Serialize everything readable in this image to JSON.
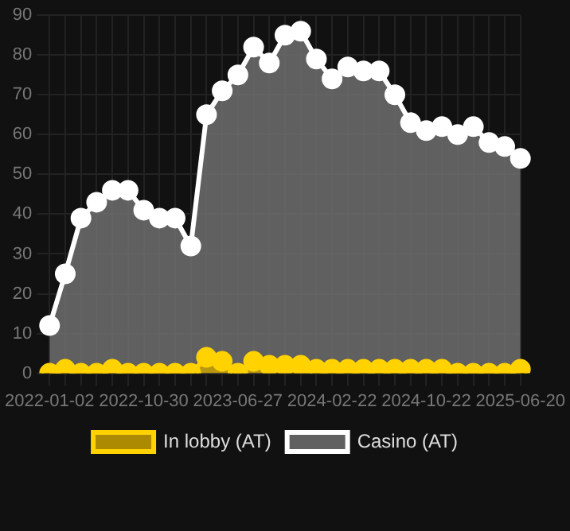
{
  "chart_data": {
    "type": "area",
    "categories": [
      "2022-01-02",
      null,
      null,
      null,
      null,
      null,
      "2022-10-30",
      null,
      null,
      null,
      null,
      null,
      "2023-06-27",
      null,
      null,
      null,
      null,
      null,
      "2024-02-22",
      null,
      null,
      null,
      null,
      null,
      "2024-10-22",
      null,
      null,
      null,
      null,
      null,
      "2025-06-20"
    ],
    "series": [
      {
        "name": "In lobby (AT)",
        "color": "#ffd200",
        "values": [
          0,
          1,
          0,
          0,
          1,
          0,
          0,
          0,
          0,
          0,
          4,
          3,
          0,
          3,
          2,
          2,
          2,
          1,
          1,
          1,
          1,
          1,
          1,
          1,
          1,
          1,
          0,
          0,
          0,
          0,
          1
        ]
      },
      {
        "name": "Casino (AT)",
        "color": "#ffffff",
        "values": [
          12,
          25,
          39,
          43,
          46,
          46,
          41,
          39,
          39,
          32,
          65,
          71,
          75,
          82,
          78,
          85,
          86,
          79,
          74,
          77,
          76,
          76,
          70,
          63,
          61,
          62,
          60,
          62,
          58,
          57,
          54
        ]
      }
    ],
    "ylim": [
      0,
      90
    ],
    "yticks": [
      0,
      10,
      20,
      30,
      40,
      50,
      60,
      70,
      80,
      90
    ],
    "grid": true,
    "legend": "bottom",
    "marker": "circle"
  }
}
